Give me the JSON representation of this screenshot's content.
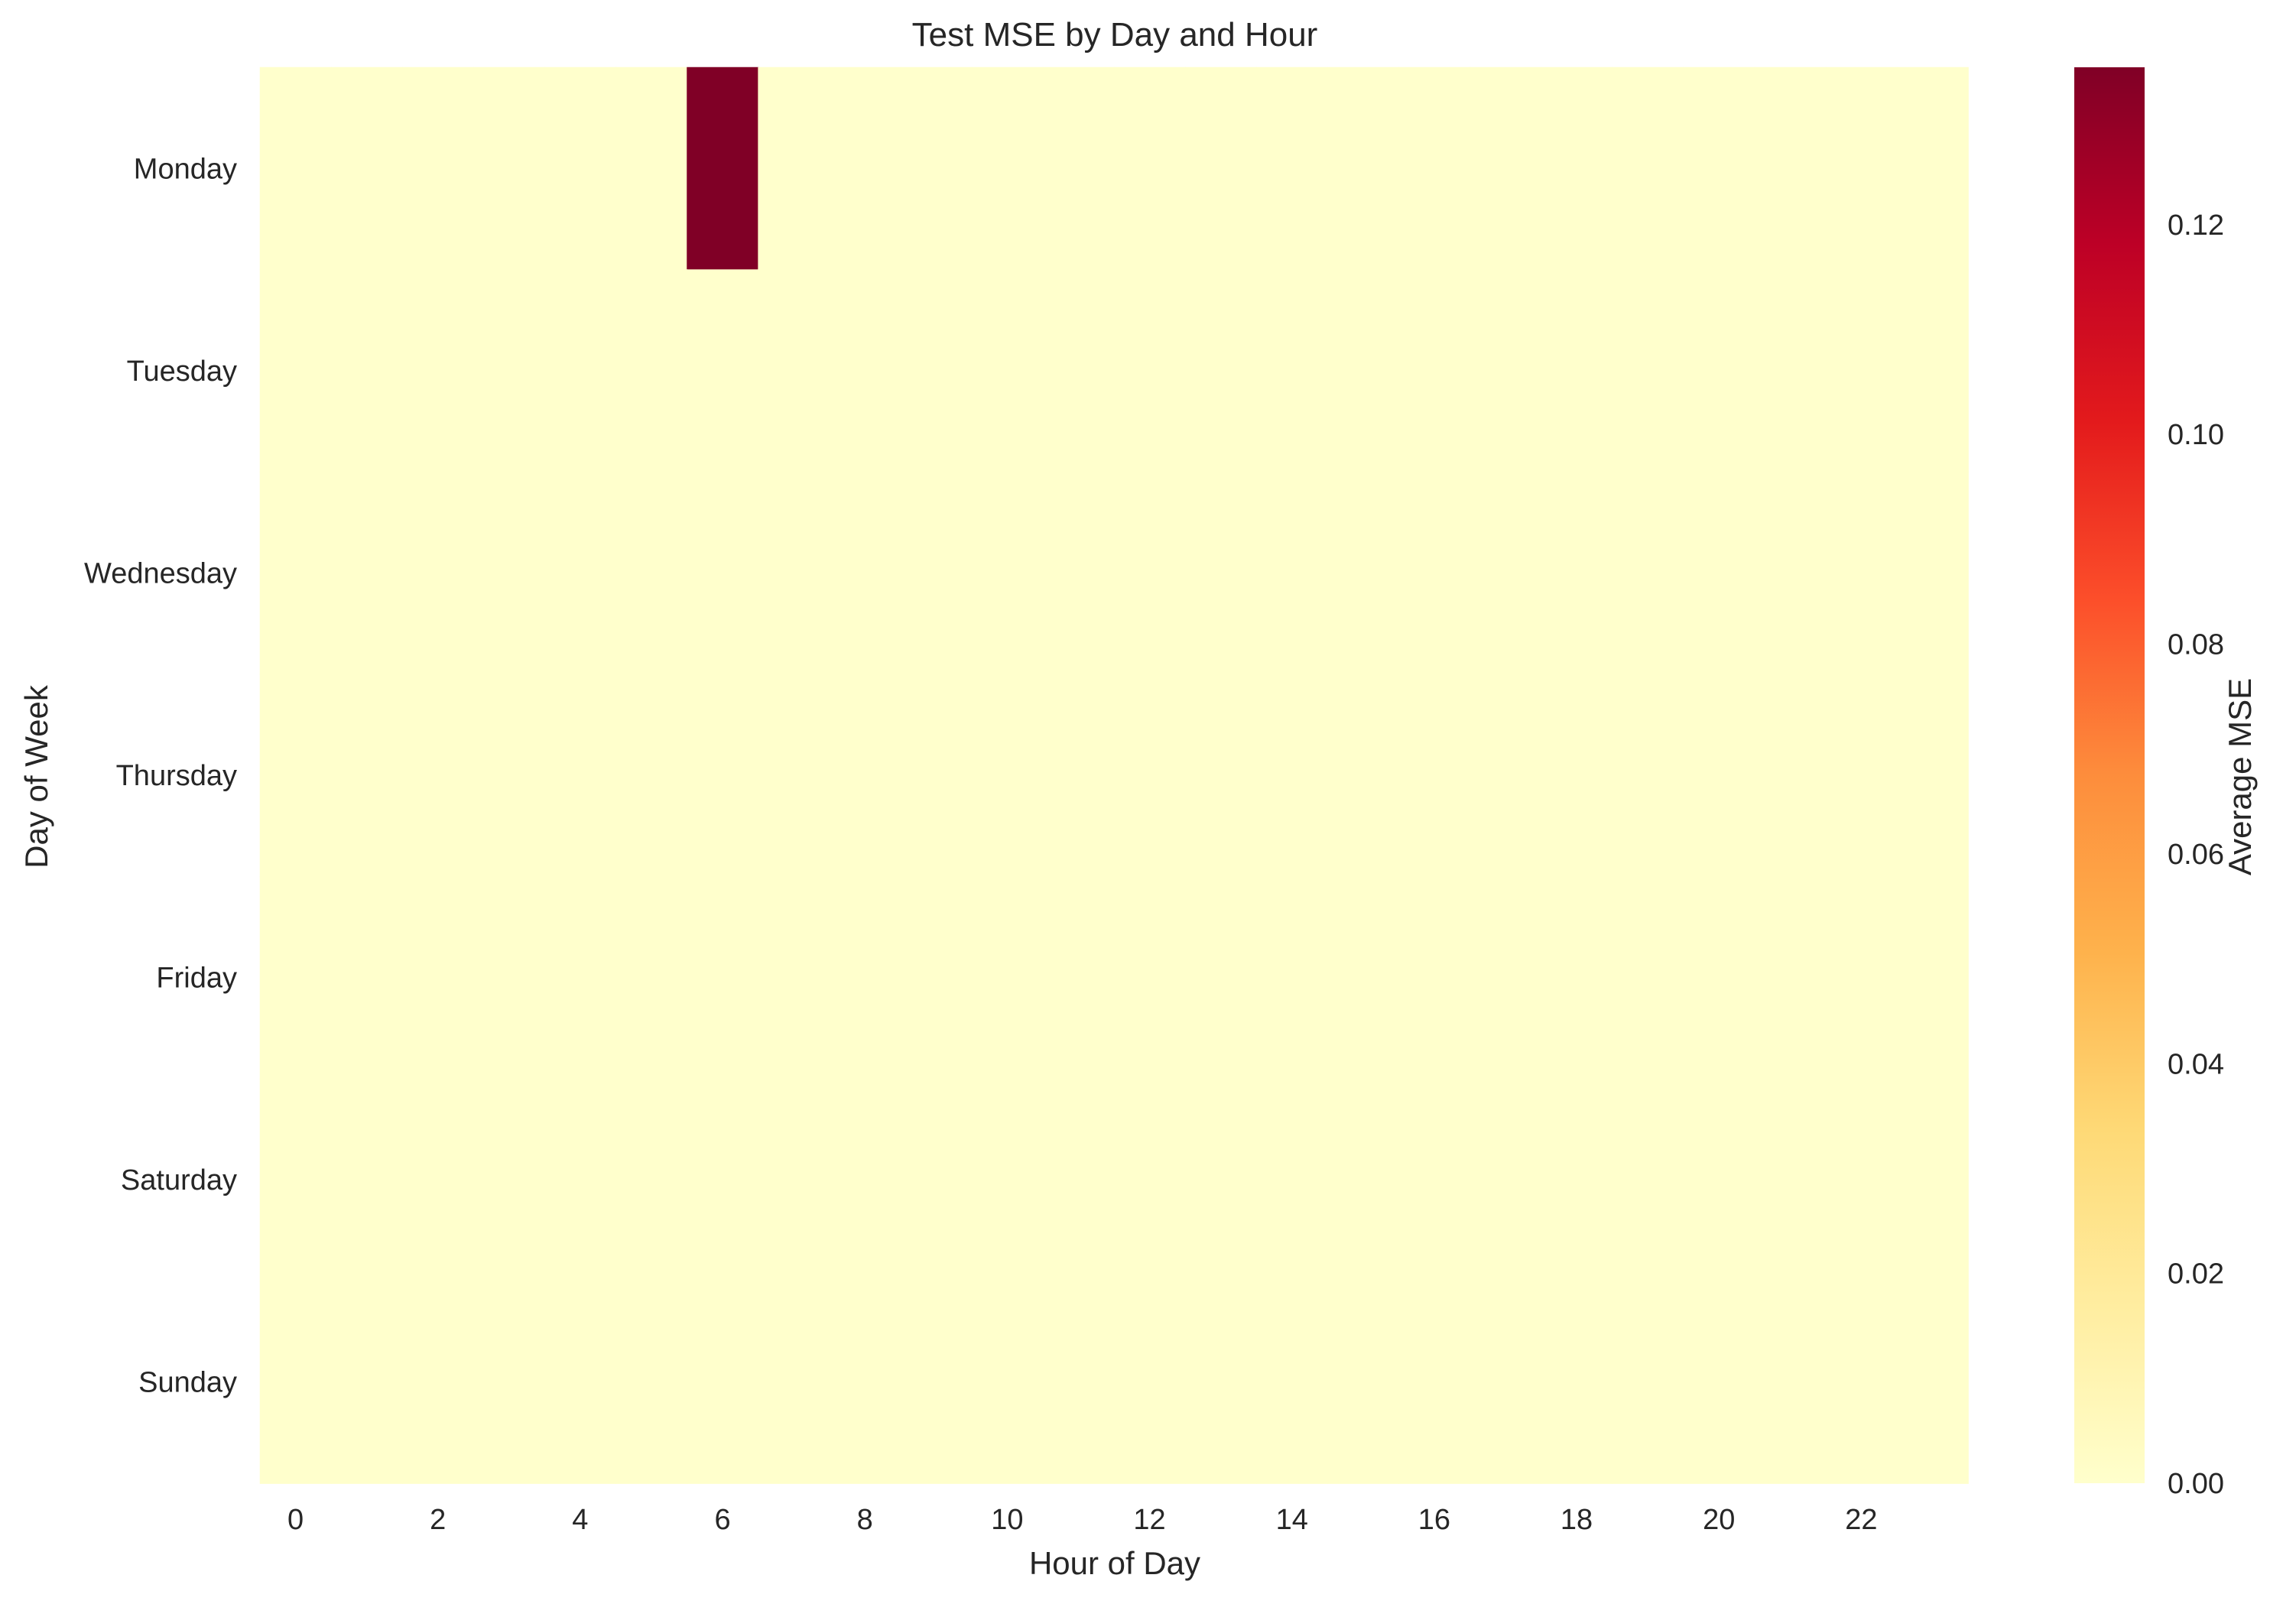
{
  "chart_data": {
    "type": "heatmap",
    "title": "Test MSE by Day and Hour",
    "xlabel": "Hour of Day",
    "ylabel": "Day of Week",
    "x_categories": [
      0,
      1,
      2,
      3,
      4,
      5,
      6,
      7,
      8,
      9,
      10,
      11,
      12,
      13,
      14,
      15,
      16,
      17,
      18,
      19,
      20,
      21,
      22,
      23
    ],
    "x_tick_labels": [
      "0",
      "2",
      "4",
      "6",
      "8",
      "10",
      "12",
      "14",
      "16",
      "18",
      "20",
      "22"
    ],
    "y_categories": [
      "Monday",
      "Tuesday",
      "Wednesday",
      "Thursday",
      "Friday",
      "Saturday",
      "Sunday"
    ],
    "values": [
      [
        0,
        0,
        0,
        0,
        0,
        0,
        0.135,
        0,
        0,
        0,
        0,
        0,
        0,
        0,
        0,
        0,
        0,
        0,
        0,
        0,
        0,
        0,
        0,
        0
      ],
      [
        0,
        0,
        0,
        0,
        0,
        0,
        0,
        0,
        0,
        0,
        0,
        0,
        0,
        0,
        0,
        0,
        0,
        0,
        0,
        0,
        0,
        0,
        0,
        0
      ],
      [
        0,
        0,
        0,
        0,
        0,
        0,
        0,
        0,
        0,
        0,
        0,
        0,
        0,
        0,
        0,
        0,
        0,
        0,
        0,
        0,
        0,
        0,
        0,
        0
      ],
      [
        0,
        0,
        0,
        0,
        0,
        0,
        0,
        0,
        0,
        0,
        0,
        0,
        0,
        0,
        0,
        0,
        0,
        0,
        0,
        0,
        0,
        0,
        0,
        0
      ],
      [
        0,
        0,
        0,
        0,
        0,
        0,
        0,
        0,
        0,
        0,
        0,
        0,
        0,
        0,
        0,
        0,
        0,
        0,
        0,
        0,
        0,
        0,
        0,
        0
      ],
      [
        0,
        0,
        0,
        0,
        0,
        0,
        0,
        0,
        0,
        0,
        0,
        0,
        0,
        0,
        0,
        0,
        0,
        0,
        0,
        0,
        0,
        0,
        0,
        0
      ],
      [
        0,
        0,
        0,
        0,
        0,
        0,
        0,
        0,
        0,
        0,
        0,
        0,
        0,
        0,
        0,
        0,
        0,
        0,
        0,
        0,
        0,
        0,
        0,
        0
      ]
    ],
    "colorbar": {
      "label": "Average MSE",
      "range": [
        0,
        0.135
      ],
      "ticks": [
        0.0,
        0.02,
        0.04,
        0.06,
        0.08,
        0.1,
        0.12
      ],
      "tick_labels": [
        "0.00",
        "0.02",
        "0.04",
        "0.06",
        "0.08",
        "0.10",
        "0.12"
      ],
      "colormap": "YlOrRd",
      "colors": [
        "#ffffcc",
        "#ffeda0",
        "#fed976",
        "#feb24c",
        "#fd8d3c",
        "#fc4e2a",
        "#e31a1c",
        "#bd0026",
        "#800026"
      ]
    },
    "grid": false
  }
}
